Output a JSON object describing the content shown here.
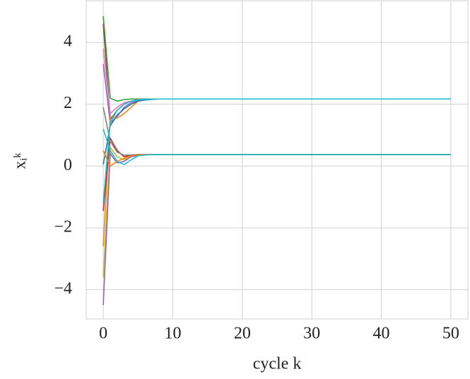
{
  "chart_data": {
    "type": "line",
    "xlabel": "cycle k",
    "ylabel": "xᵢᵏ",
    "x": [
      0,
      1,
      2,
      3,
      4,
      5,
      6,
      7,
      8,
      9,
      10,
      50
    ],
    "series": [
      {
        "color": "#2ca02c",
        "values": [
          4.85,
          2.2,
          2.1,
          2.15,
          2.17,
          2.17,
          2.17,
          2.17,
          2.17,
          2.17,
          2.17,
          2.17
        ]
      },
      {
        "color": "#8c564b",
        "values": [
          4.6,
          1.5,
          1.8,
          2.0,
          2.1,
          2.15,
          2.16,
          2.17,
          2.17,
          2.17,
          2.17,
          2.17
        ]
      },
      {
        "color": "#e377c2",
        "values": [
          3.8,
          1.7,
          1.9,
          2.05,
          2.1,
          2.15,
          2.16,
          2.17,
          2.17,
          2.17,
          2.17,
          2.17
        ]
      },
      {
        "color": "#9467bd",
        "values": [
          3.3,
          1.4,
          1.6,
          1.9,
          2.05,
          2.12,
          2.15,
          2.17,
          2.17,
          2.17,
          2.17,
          2.17
        ]
      },
      {
        "color": "#ff7f0e",
        "values": [
          -2.6,
          1.6,
          1.55,
          1.7,
          1.9,
          2.1,
          2.14,
          2.16,
          2.17,
          2.17,
          2.17,
          2.17
        ]
      },
      {
        "color": "#1f77b4",
        "values": [
          0.05,
          1.3,
          1.65,
          1.85,
          2.0,
          2.1,
          2.14,
          2.16,
          2.17,
          2.17,
          2.17,
          2.17
        ]
      },
      {
        "color": "#d62728",
        "values": [
          -1.45,
          0.9,
          0.5,
          0.3,
          0.35,
          0.37,
          0.37,
          0.37,
          0.37,
          0.37,
          0.37,
          0.37
        ]
      },
      {
        "color": "#bcbd22",
        "values": [
          -3.6,
          0.6,
          0.3,
          0.2,
          0.3,
          0.35,
          0.36,
          0.37,
          0.37,
          0.37,
          0.37,
          0.37
        ]
      },
      {
        "color": "#7f7f7f",
        "values": [
          1.9,
          0.8,
          0.45,
          0.35,
          0.36,
          0.37,
          0.37,
          0.37,
          0.37,
          0.37,
          0.37,
          0.37
        ]
      },
      {
        "color": "#9467bd",
        "values": [
          -4.5,
          0.4,
          0.1,
          0.15,
          0.3,
          0.34,
          0.36,
          0.37,
          0.37,
          0.37,
          0.37,
          0.37
        ]
      },
      {
        "color": "#ff7f0e",
        "values": [
          0.5,
          0.0,
          0.15,
          0.25,
          0.33,
          0.36,
          0.37,
          0.37,
          0.37,
          0.37,
          0.37,
          0.37
        ]
      },
      {
        "color": "#17becf",
        "values": [
          1.2,
          0.5,
          0.15,
          0.05,
          0.2,
          0.33,
          0.36,
          0.37,
          0.37,
          0.37,
          0.37,
          0.37
        ]
      },
      {
        "color": "#17becf",
        "values": [
          -1.2,
          1.4,
          1.8,
          2.0,
          2.1,
          2.14,
          2.16,
          2.17,
          2.17,
          2.17,
          2.17,
          2.17
        ]
      }
    ],
    "xlim": [
      -2.45,
      52.45
    ],
    "ylim": [
      -4.95,
      5.35
    ],
    "xticks": [
      0,
      10,
      20,
      30,
      40,
      50
    ],
    "yticks": [
      {
        "value": -4,
        "label": "−4"
      },
      {
        "value": -2,
        "label": "−2"
      },
      0,
      2,
      4
    ],
    "grid": true
  }
}
